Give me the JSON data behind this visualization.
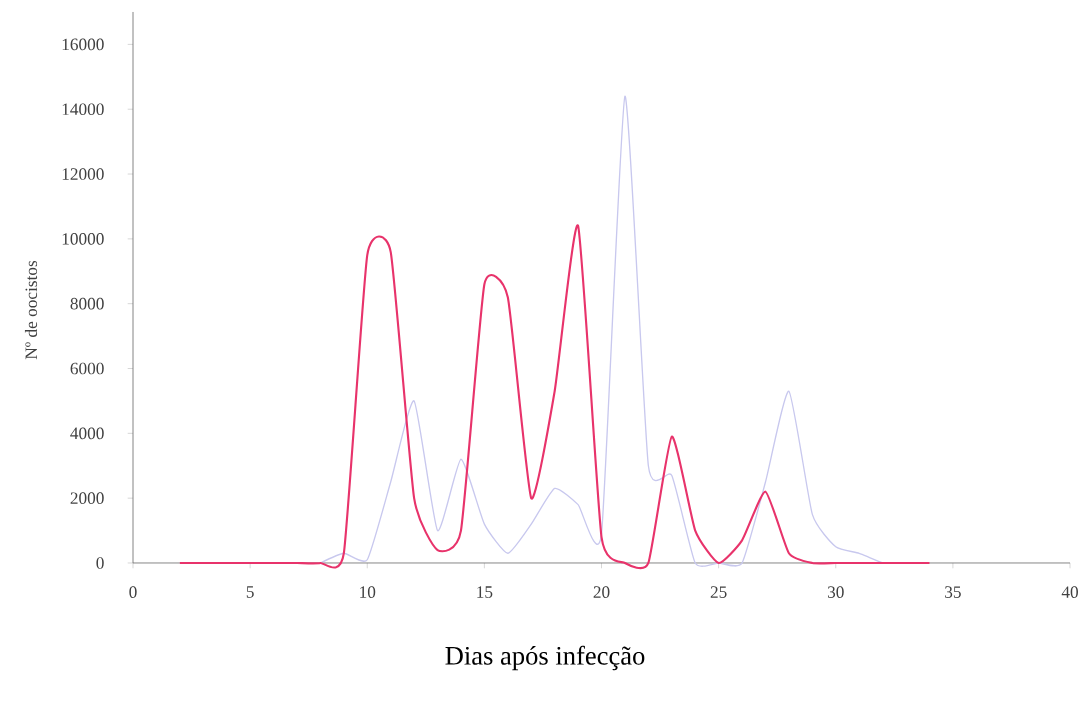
{
  "chart_data": {
    "type": "line",
    "xlabel": "Dias após infecção",
    "ylabel": "Nº de oocistos",
    "series": [
      {
        "color": "#e8336b",
        "x": [
          2,
          3,
          4,
          5,
          6,
          7,
          8,
          9,
          10,
          11,
          12,
          13,
          14,
          15,
          16,
          17,
          18,
          19,
          20,
          21,
          22,
          23,
          24,
          25,
          26,
          27,
          28,
          29,
          30,
          31,
          32,
          33,
          34
        ],
        "values": [
          0,
          0,
          0,
          0,
          0,
          0,
          0,
          300,
          9500,
          9600,
          2000,
          400,
          1000,
          8600,
          8200,
          2000,
          5300,
          10400,
          800,
          0,
          0,
          3900,
          1000,
          0,
          700,
          2200,
          300,
          0,
          0,
          0,
          0,
          0,
          0
        ]
      },
      {
        "color": "#c8c8ee",
        "x": [
          8,
          9,
          10,
          11,
          12,
          13,
          14,
          15,
          16,
          17,
          18,
          19,
          20,
          21,
          22,
          23,
          24,
          25,
          26,
          27,
          28,
          29,
          30,
          31,
          32
        ],
        "values": [
          0,
          300,
          100,
          2500,
          5000,
          1000,
          3200,
          1200,
          300,
          1200,
          2300,
          1800,
          900,
          14400,
          3000,
          2700,
          0,
          0,
          0,
          2500,
          5300,
          1500,
          500,
          300,
          0
        ]
      }
    ],
    "xlim": [
      0,
      40
    ],
    "ylim": [
      0,
      17000
    ],
    "xticks": [
      0,
      5,
      10,
      15,
      20,
      25,
      30,
      35,
      40
    ],
    "yticks": [
      0,
      2000,
      4000,
      6000,
      8000,
      10000,
      12000,
      14000,
      16000
    ],
    "marker": "none",
    "line_style": "solid"
  }
}
